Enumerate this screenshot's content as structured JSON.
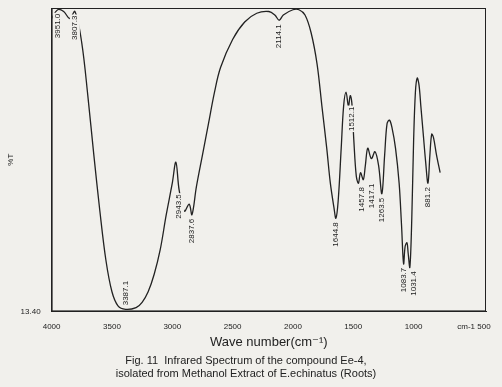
{
  "chart_data": {
    "type": "line",
    "title": [
      "Fig. 11  Infrared Spectrum of the compound Ee-4,",
      "isolated from Methanol Extract of E.echinatus (Roots)"
    ],
    "x_label": "Wave number(cm⁻¹)",
    "y_label": "%T",
    "x": [
      4000,
      3950,
      3900,
      3850,
      3807,
      3750,
      3700,
      3650,
      3600,
      3550,
      3500,
      3450,
      3387,
      3300,
      3250,
      3200,
      3150,
      3100,
      3050,
      3000,
      2970,
      2943,
      2900,
      2860,
      2837,
      2800,
      2750,
      2700,
      2650,
      2600,
      2500,
      2400,
      2300,
      2200,
      2150,
      2114,
      2080,
      2000,
      1950,
      1900,
      1850,
      1800,
      1760,
      1720,
      1690,
      1660,
      1644,
      1625,
      1600,
      1580,
      1560,
      1540,
      1525,
      1512,
      1495,
      1475,
      1457,
      1440,
      1417,
      1400,
      1380,
      1350,
      1320,
      1290,
      1263,
      1240,
      1220,
      1200,
      1180,
      1150,
      1120,
      1100,
      1083,
      1070,
      1055,
      1045,
      1031,
      1015,
      1000,
      985,
      970,
      955,
      940,
      920,
      900,
      881,
      865,
      850,
      835,
      810,
      780
    ],
    "values": [
      97,
      99.5,
      99,
      97,
      99,
      90,
      75,
      58,
      42,
      28,
      19,
      15,
      14,
      14.5,
      16,
      19,
      24,
      31,
      41,
      50,
      56,
      48,
      42,
      44,
      41,
      49,
      58,
      67,
      76,
      83,
      91,
      96,
      98.5,
      99,
      98,
      96.5,
      98,
      99.5,
      99.5,
      98,
      93,
      84,
      72,
      60,
      50,
      43,
      40,
      45,
      60,
      72,
      76,
      72,
      75,
      73,
      62,
      52,
      50,
      53,
      51,
      55,
      60,
      57,
      59,
      55,
      47,
      58,
      67,
      68,
      66,
      60,
      50,
      38,
      27,
      32,
      33,
      30,
      26,
      40,
      62,
      76,
      80,
      78,
      72,
      64,
      56,
      50,
      58,
      64,
      63,
      58,
      53
    ],
    "color": "#222222",
    "xlim": [
      4000,
      400
    ],
    "xticks": [
      4000,
      3500,
      3000,
      2500,
      2000,
      1500,
      1000,
      {
        "value": 500,
        "label": "cm-1 500"
      }
    ],
    "ylim": [
      13.4,
      100
    ],
    "yticks": [
      {
        "value": 13.4,
        "label": "13.40"
      }
    ],
    "grid": false,
    "annotations": [
      {
        "value": 3951.0,
        "label": "3951.0"
      },
      {
        "value": 3807.3,
        "label": "3807.3"
      },
      {
        "value": 3387.1,
        "label": "3387.1"
      },
      {
        "value": 2943.5,
        "label": "2943.5"
      },
      {
        "value": 2837.6,
        "label": "2837.6"
      },
      {
        "value": 2114.1,
        "label": "2114.1"
      },
      {
        "value": 1644.8,
        "label": "1644.8"
      },
      {
        "value": 1512.1,
        "label": "1512.1"
      },
      {
        "value": 1457.8,
        "label": "1457.8"
      },
      {
        "value": 1417.1,
        "label": "1417.1"
      },
      {
        "value": 1263.5,
        "label": "1263.5"
      },
      {
        "value": 1083.7,
        "label": "1083.7"
      },
      {
        "value": 1031.4,
        "label": "1031.4"
      },
      {
        "value": 881.2,
        "label": "881.2"
      }
    ]
  }
}
